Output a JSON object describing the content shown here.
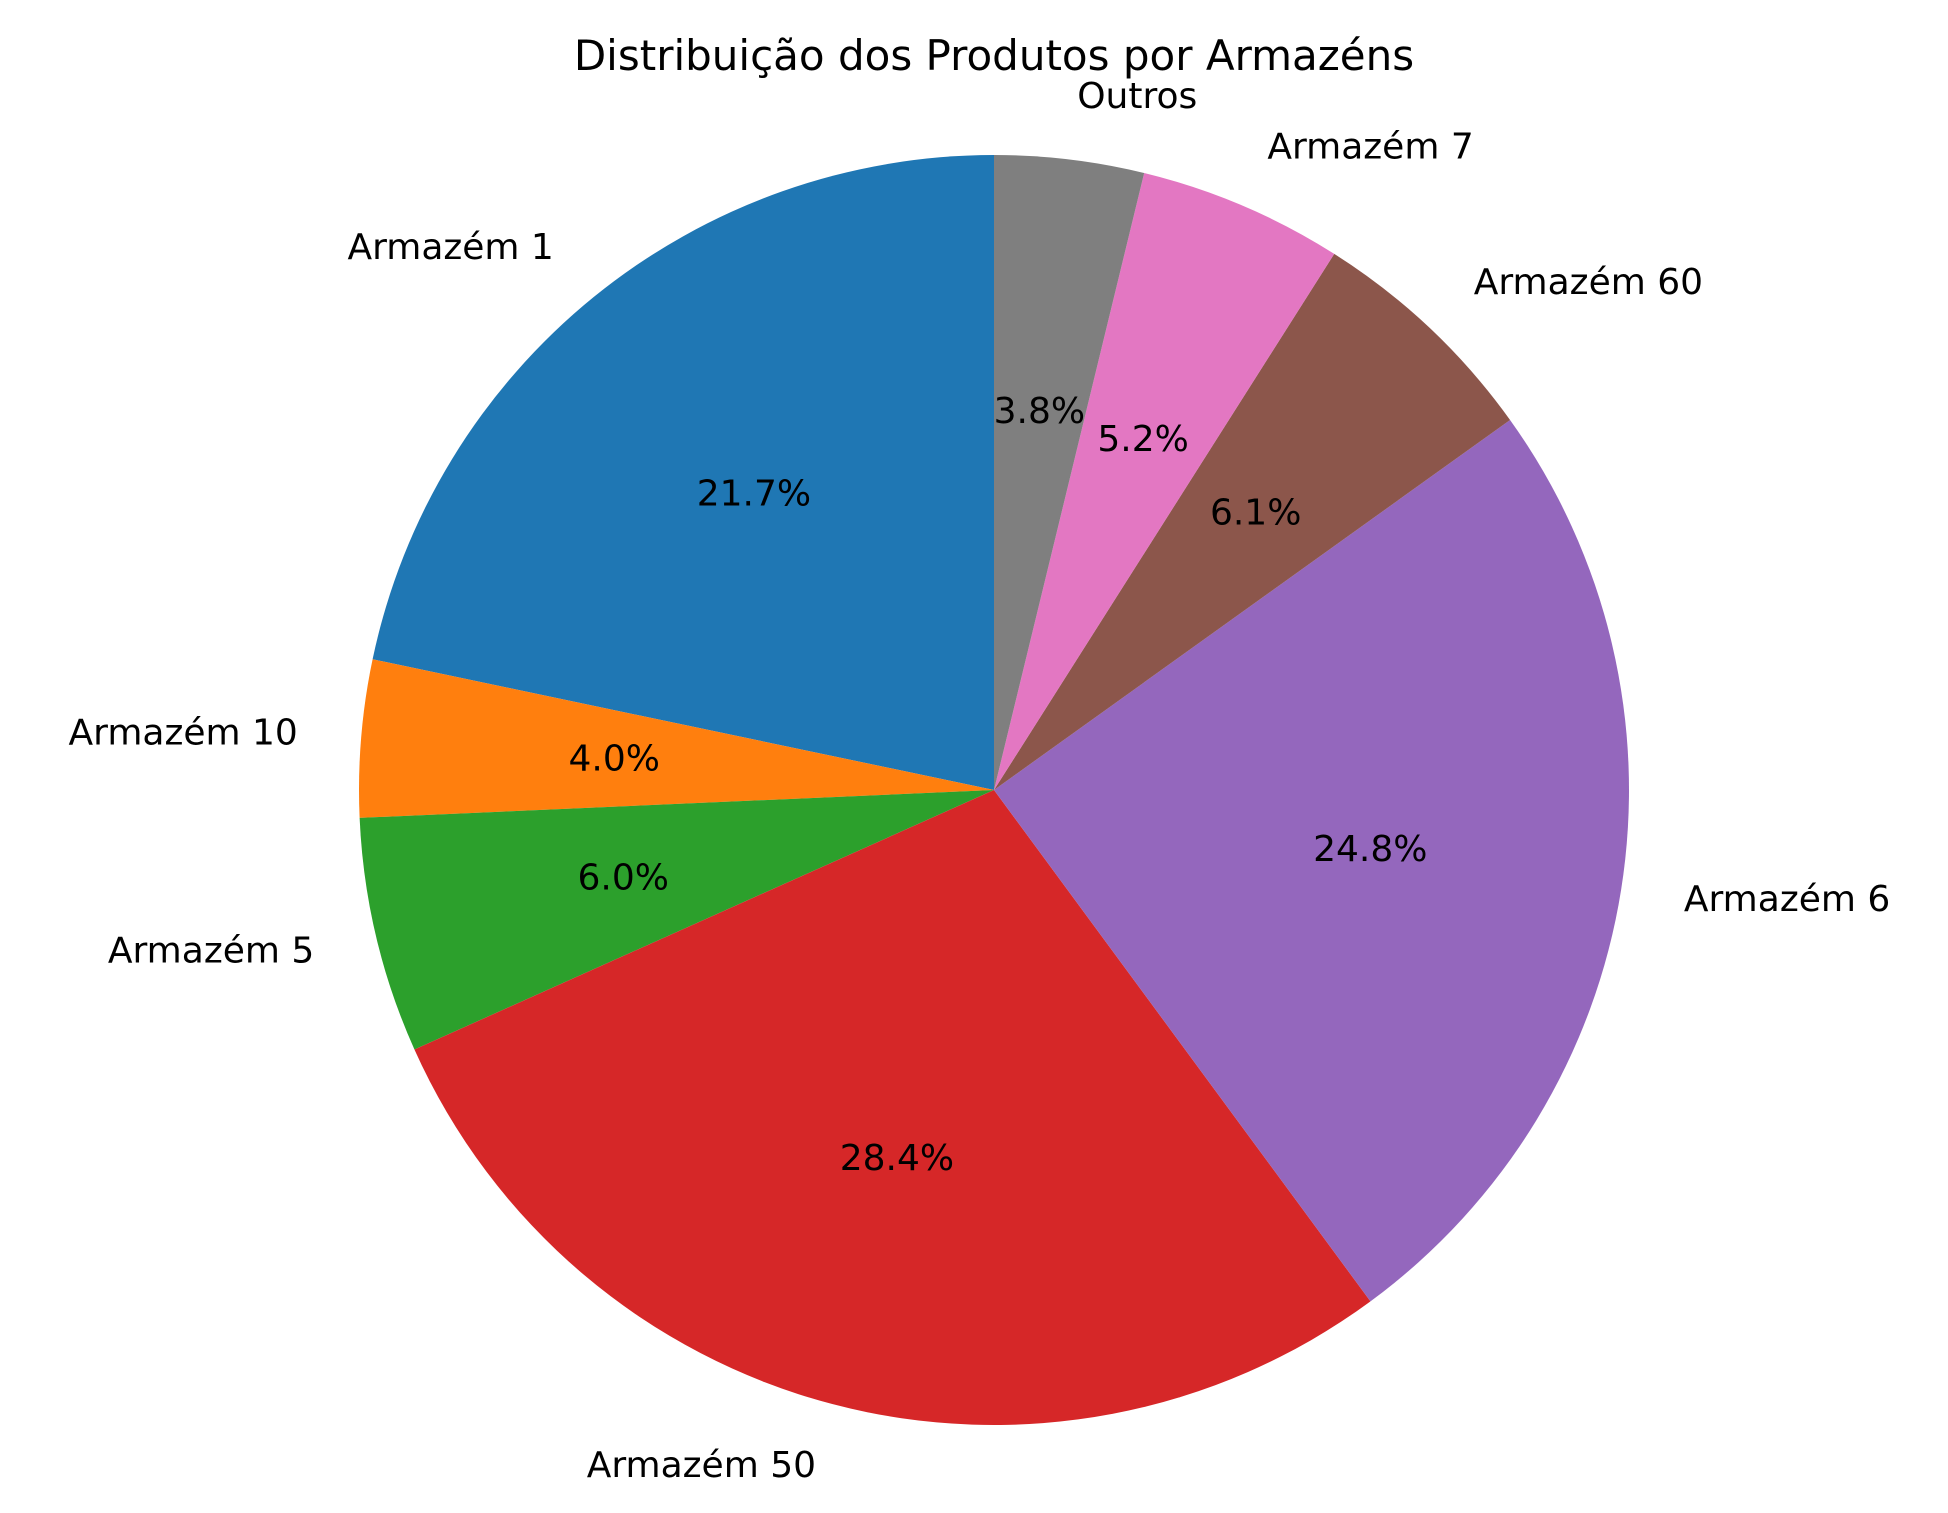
{
  "chart_data": {
    "type": "pie",
    "title": "Distribuição dos Produtos por Armazéns",
    "start_angle_deg": 90,
    "direction": "counterclockwise",
    "slices": [
      {
        "label": "Armazém 1",
        "value": 21.7,
        "pct_label": "21.7%",
        "color": "#1f77b4"
      },
      {
        "label": "Armazém 10",
        "value": 4.0,
        "pct_label": "4.0%",
        "color": "#ff7f0e"
      },
      {
        "label": "Armazém 5",
        "value": 6.0,
        "pct_label": "6.0%",
        "color": "#2ca02c"
      },
      {
        "label": "Armazém 50",
        "value": 28.4,
        "pct_label": "28.4%",
        "color": "#d62728"
      },
      {
        "label": "Armazém 6",
        "value": 24.8,
        "pct_label": "24.8%",
        "color": "#9467bd"
      },
      {
        "label": "Armazém 60",
        "value": 6.1,
        "pct_label": "6.1%",
        "color": "#8c564b"
      },
      {
        "label": "Armazém 7",
        "value": 5.2,
        "pct_label": "5.2%",
        "color": "#e377c2"
      },
      {
        "label": "Outros",
        "value": 3.8,
        "pct_label": "3.8%",
        "color": "#7f7f7f"
      }
    ]
  }
}
